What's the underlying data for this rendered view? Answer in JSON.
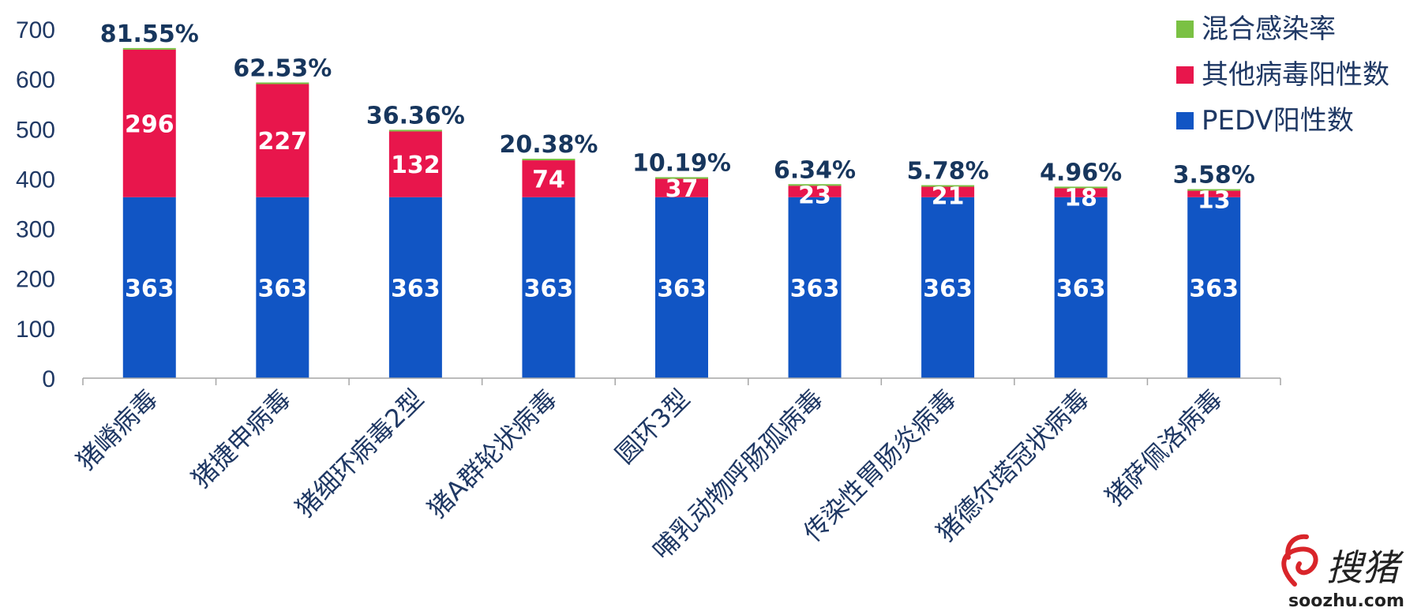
{
  "chart_data": {
    "type": "bar",
    "stacked": true,
    "categories": [
      "猪嵴病毒",
      "猪捷申病毒",
      "猪细环病毒2型",
      "猪A群轮状病毒",
      "圆环3型",
      "哺乳动物呼肠孤病毒",
      "传染性胃肠炎病毒",
      "猪德尔塔冠状病毒",
      "猪萨佩洛病毒"
    ],
    "series": [
      {
        "name": "PEDV阳性数",
        "color": "#1155c4",
        "values": [
          363,
          363,
          363,
          363,
          363,
          363,
          363,
          363,
          363
        ]
      },
      {
        "name": "其他病毒阳性数",
        "color": "#e8164c",
        "values": [
          296,
          227,
          132,
          74,
          37,
          23,
          21,
          18,
          13
        ]
      },
      {
        "name": "混合感染率",
        "color": "#7ac143",
        "values": [
          null,
          null,
          null,
          null,
          null,
          null,
          null,
          null,
          null
        ]
      }
    ],
    "top_labels": [
      "81.55%",
      "62.53%",
      "36.36%",
      "20.38%",
      "10.19%",
      "6.34%",
      "5.78%",
      "4.96%",
      "3.58%"
    ],
    "ylim": [
      0,
      700
    ],
    "yticks": [
      0,
      100,
      200,
      300,
      400,
      500,
      600,
      700
    ],
    "legend_position": "top-right",
    "legend_order": [
      "混合感染率",
      "其他病毒阳性数",
      "PEDV阳性数"
    ]
  },
  "watermark": {
    "brand": "搜猪",
    "url": "soozhu.com",
    "colors": {
      "logo": "#d9252a",
      "text": "#222222"
    }
  },
  "colors": {
    "axis_text": "#1f3864",
    "axis_line": "#a6a6a6"
  }
}
